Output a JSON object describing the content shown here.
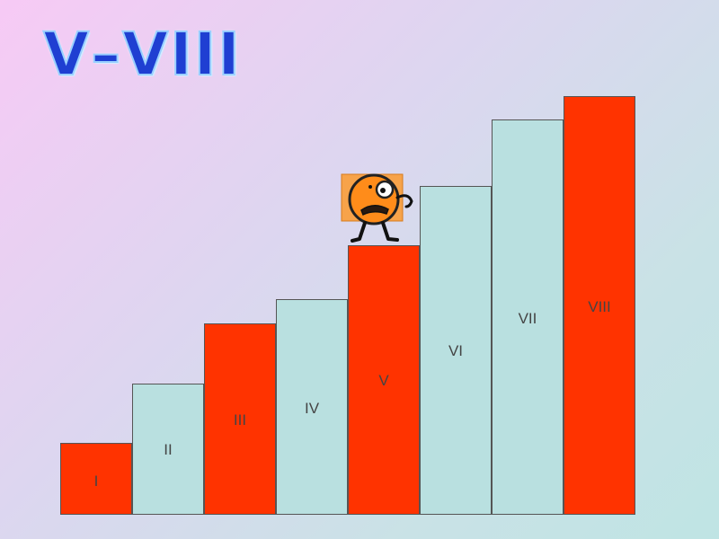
{
  "title": "V–VIII",
  "colors": {
    "red_step": "#ff3300",
    "light_step": "#b9e0e0",
    "title": "#1f3fd2",
    "mascot_face": "#ff8c1a"
  },
  "steps": [
    {
      "label": "I",
      "color": "red"
    },
    {
      "label": "II",
      "color": "light"
    },
    {
      "label": "III",
      "color": "red"
    },
    {
      "label": "IV",
      "color": "light"
    },
    {
      "label": "V",
      "color": "red"
    },
    {
      "label": "VI",
      "color": "light"
    },
    {
      "label": "VII",
      "color": "light"
    },
    {
      "label": "VIII",
      "color": "red"
    }
  ],
  "mascot_icon": "orange-ball-character-icon"
}
